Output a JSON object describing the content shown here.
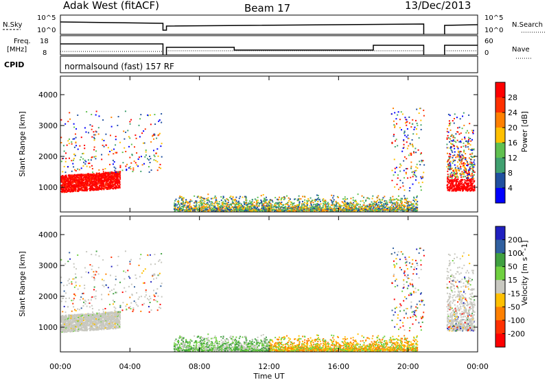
{
  "header": {
    "station": "Adak West (fitACF)",
    "beam": "Beam 17",
    "date": "13/Dec/2013",
    "cpid_label": "CPID",
    "cpid_text": "normalsound (fast) 157 RF"
  },
  "noise_panel": {
    "left_label": "N.Sky",
    "left_ticks": [
      "10^5",
      "10^0"
    ],
    "right_label": "N.Search",
    "right_ticks": [
      "10^5",
      "10^0"
    ]
  },
  "freq_panel": {
    "left_label_1": "Freq.",
    "left_label_2": "[MHz]",
    "left_ticks": [
      "18",
      "8"
    ],
    "right_label": "Nave",
    "right_ticks": [
      "60",
      "0"
    ]
  },
  "colors": {
    "power_scale": [
      "#0000ff",
      "#2050a0",
      "#40a070",
      "#60c050",
      "#ffc000",
      "#ff8000",
      "#ff3000",
      "#ff0000"
    ],
    "velocity_scale": [
      "#2020c0",
      "#3060a0",
      "#40a040",
      "#70d040",
      "#c8c8c0",
      "#ffc000",
      "#ff8000",
      "#ff3000",
      "#ff0000"
    ]
  },
  "chart_data": [
    {
      "type": "heatmap",
      "name": "power",
      "ylabel": "Slant Range [km]",
      "y_ticks": [
        "1000",
        "2000",
        "3000",
        "4000"
      ],
      "ylim": [
        200,
        4600
      ],
      "colorbar_label": "Power [dB]",
      "colorbar_ticks": [
        "4",
        "8",
        "12",
        "16",
        "20",
        "24",
        "28"
      ]
    },
    {
      "type": "heatmap",
      "name": "velocity",
      "ylabel": "Slant Range [km]",
      "y_ticks": [
        "1000",
        "2000",
        "3000",
        "4000"
      ],
      "ylim": [
        200,
        4600
      ],
      "colorbar_label": "Velocity [m s^-1]",
      "colorbar_ticks": [
        "200",
        "100",
        "50",
        "15",
        "-15",
        "-50",
        "-100",
        "-200"
      ],
      "xlabel": "Time UT",
      "x_ticks": [
        "00:00",
        "04:00",
        "08:00",
        "12:00",
        "16:00",
        "20:00",
        "00:00"
      ],
      "xlim_hours": [
        0,
        24
      ]
    }
  ]
}
